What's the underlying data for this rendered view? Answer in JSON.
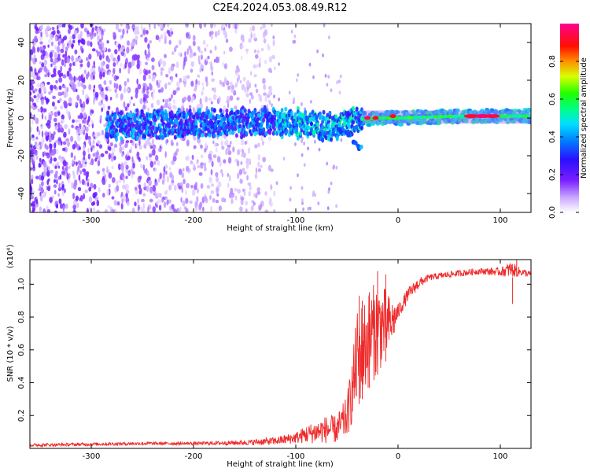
{
  "title": "C2E4.2024.053.08.49.R12",
  "colors": {
    "snr_line": "#ee2a2a",
    "spectrogram_colormap": [
      "#ffffff",
      "#e9ddff",
      "#a36bff",
      "#7a1eff",
      "#2a10ff",
      "#00c8ff",
      "#00ff60",
      "#d8ff00",
      "#ff6a00",
      "#ff0000",
      "#ff00aa"
    ]
  },
  "chart_data": [
    {
      "type": "heatmap",
      "xlabel": "Height of straight line (km)",
      "ylabel": "Frequency (Hz)",
      "xlim": [
        -360,
        130
      ],
      "ylim": [
        -50,
        50
      ],
      "x_ticks": [
        {
          "value": -300,
          "label": "-300"
        },
        {
          "value": -200,
          "label": "-200"
        },
        {
          "value": -100,
          "label": "-100"
        },
        {
          "value": 0,
          "label": "0"
        },
        {
          "value": 100,
          "label": "100"
        }
      ],
      "y_ticks": [
        {
          "value": -40,
          "label": "-40"
        },
        {
          "value": -20,
          "label": "-20"
        },
        {
          "value": 0,
          "label": "0"
        },
        {
          "value": 20,
          "label": "20"
        },
        {
          "value": 40,
          "label": "40"
        }
      ],
      "colorbar": {
        "label": "Normalized spectral amplitude",
        "range": [
          0,
          1
        ],
        "ticks": [
          {
            "value": 0.0,
            "label": "0.0"
          },
          {
            "value": 0.2,
            "label": "0.2"
          },
          {
            "value": 0.4,
            "label": "0.4"
          },
          {
            "value": 0.6,
            "label": "0.6"
          },
          {
            "value": 0.8,
            "label": "0.8"
          }
        ]
      },
      "band_center_hz": [
        [
          -285,
          -4
        ],
        [
          -200,
          -3
        ],
        [
          -130,
          -2
        ],
        [
          -95,
          -3
        ],
        [
          -70,
          -5
        ],
        [
          -40,
          -1
        ],
        [
          -20,
          0
        ],
        [
          0,
          0
        ],
        [
          60,
          1
        ],
        [
          90,
          1
        ],
        [
          130,
          1
        ]
      ],
      "branch_hz": [
        [
          -55,
          -7
        ],
        [
          -48,
          -10
        ],
        [
          -42,
          -13
        ],
        [
          -38,
          -16
        ]
      ],
      "peak_amplitudes": [
        {
          "x": -30,
          "y": 0,
          "a": 0.95
        },
        {
          "x": -22,
          "y": 0,
          "a": 0.9
        },
        {
          "x": -5,
          "y": 1,
          "a": 0.9
        },
        {
          "x": 72,
          "y": 1,
          "a": 0.92
        },
        {
          "x": 82,
          "y": 1,
          "a": 0.97
        },
        {
          "x": 92,
          "y": 1,
          "a": 0.95
        }
      ],
      "grid": false
    },
    {
      "type": "line",
      "xlabel": "Height of straight line (km)",
      "ylabel": "SNR (10 * v/v)",
      "y_scale_label": "(x10⁴)",
      "xlim": [
        -360,
        130
      ],
      "ylim": [
        0,
        1.15
      ],
      "x_ticks": [
        {
          "value": -300,
          "label": "-300"
        },
        {
          "value": -200,
          "label": "-200"
        },
        {
          "value": -100,
          "label": "-100"
        },
        {
          "value": 0,
          "label": "0"
        },
        {
          "value": 100,
          "label": "100"
        }
      ],
      "y_ticks": [
        {
          "value": 0.2,
          "label": "0.2"
        },
        {
          "value": 0.4,
          "label": "0.4"
        },
        {
          "value": 0.6,
          "label": "0.6"
        },
        {
          "value": 0.8,
          "label": "0.8"
        },
        {
          "value": 1.0,
          "label": "1.0"
        }
      ],
      "envelope": [
        [
          -360,
          0.01,
          0.03
        ],
        [
          -250,
          0.02,
          0.04
        ],
        [
          -200,
          0.02,
          0.04
        ],
        [
          -150,
          0.02,
          0.05
        ],
        [
          -120,
          0.02,
          0.07
        ],
        [
          -100,
          0.03,
          0.1
        ],
        [
          -90,
          0.03,
          0.14
        ],
        [
          -80,
          0.03,
          0.17
        ],
        [
          -70,
          0.03,
          0.2
        ],
        [
          -60,
          0.03,
          0.2
        ],
        [
          -50,
          0.06,
          0.32
        ],
        [
          -45,
          0.15,
          0.55
        ],
        [
          -40,
          0.25,
          0.85
        ],
        [
          -35,
          0.3,
          0.9
        ],
        [
          -30,
          0.35,
          0.95
        ],
        [
          -25,
          0.4,
          1.0
        ],
        [
          -20,
          0.45,
          1.02
        ],
        [
          -15,
          0.5,
          1.0
        ],
        [
          -10,
          0.55,
          0.95
        ],
        [
          -5,
          0.65,
          0.9
        ],
        [
          0,
          0.78,
          0.88
        ],
        [
          10,
          0.9,
          0.98
        ],
        [
          20,
          0.97,
          1.04
        ],
        [
          30,
          1.02,
          1.06
        ],
        [
          50,
          1.04,
          1.08
        ],
        [
          80,
          1.06,
          1.1
        ],
        [
          100,
          1.05,
          1.1
        ],
        [
          110,
          1.04,
          1.14
        ],
        [
          120,
          1.05,
          1.1
        ],
        [
          130,
          1.04,
          1.08
        ]
      ],
      "spikes": [
        {
          "x": -38,
          "y": 0.93
        },
        {
          "x": -35,
          "y": 0.9
        },
        {
          "x": -28,
          "y": 0.95
        },
        {
          "x": -20,
          "y": 1.08
        },
        {
          "x": -12,
          "y": 1.06
        },
        {
          "x": 112,
          "y": 0.88
        },
        {
          "x": 116,
          "y": 1.15
        }
      ],
      "grid": false
    }
  ]
}
